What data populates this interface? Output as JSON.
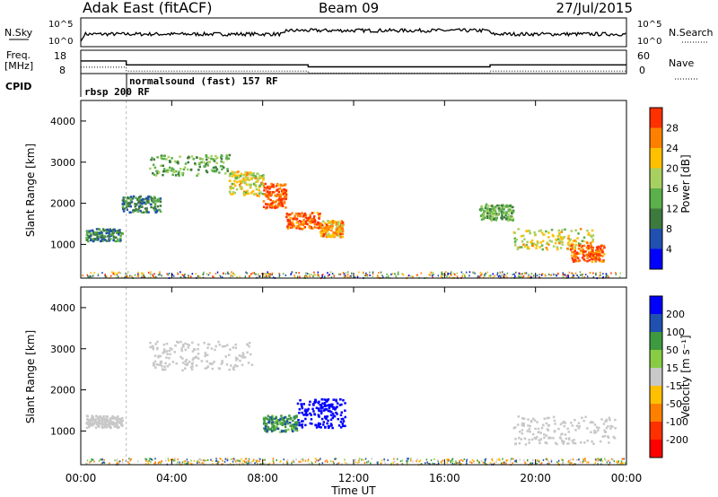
{
  "header": {
    "radar": "Adak East (fitACF)",
    "beam": "Beam 09",
    "date": "27/Jul/2015"
  },
  "param_panel": {
    "nsky_label": "N.Sky",
    "nsearch_label": "N.Search",
    "freq_label": "Freq.",
    "freq_unit": "[MHz]",
    "nave_label": "Nave",
    "cpid_label": "CPID",
    "left_ticks_top": [
      "10^5",
      "10^0"
    ],
    "right_ticks_top": [
      "10^5",
      "10^0"
    ],
    "left_ticks_freq": [
      "18",
      "8"
    ],
    "right_ticks_nave": [
      "60",
      "0"
    ],
    "cpid_entries": [
      {
        "name": "rbsp 200 RF",
        "start_hour": 0
      },
      {
        "name": "normalsound (fast) 157 RF",
        "start_hour": 2
      }
    ]
  },
  "x_axis": {
    "label": "Time UT",
    "ticks": [
      "00:00",
      "04:00",
      "08:00",
      "12:00",
      "16:00",
      "20:00",
      "00:00"
    ]
  },
  "y_axis": {
    "label": "Slant Range [km]",
    "ticks": [
      "1000",
      "2000",
      "3000",
      "4000"
    ]
  },
  "power_colorbar": {
    "label": "Power [dB]",
    "ticks": [
      "4",
      "8",
      "12",
      "16",
      "20",
      "24",
      "28"
    ],
    "colors": [
      "#0000ff",
      "#2050b0",
      "#3e7a3e",
      "#5ab04a",
      "#a8d060",
      "#ffc000",
      "#ff8000",
      "#ff3000"
    ]
  },
  "velocity_colorbar": {
    "label": "Velocity [m s⁻¹]",
    "ticks": [
      "200",
      "100",
      "50",
      "15",
      "-15",
      "-50",
      "-100",
      "-200"
    ],
    "colors": [
      "#0000ff",
      "#2050b0",
      "#3e9a3e",
      "#88cc44",
      "#c8c8c8",
      "#ffc000",
      "#ff8000",
      "#ff3000",
      "#ff0000"
    ]
  },
  "chart_data": {
    "type": "heatmap",
    "x_range_hours": [
      0,
      24
    ],
    "y_range_km": [
      180,
      4500
    ],
    "frequency_mhz": [
      {
        "start": 0,
        "end": 2,
        "value": 13.5
      },
      {
        "start": 2,
        "end": 10,
        "value": 11.5
      },
      {
        "start": 10,
        "end": 18,
        "value": 10.5
      },
      {
        "start": 18,
        "end": 24,
        "value": 11.5
      }
    ],
    "power_regions": [
      {
        "t": [
          0.2,
          1.8
        ],
        "r": [
          1100,
          1400
        ],
        "db": 10
      },
      {
        "t": [
          1.8,
          3.5
        ],
        "r": [
          1800,
          2200
        ],
        "db": 10
      },
      {
        "t": [
          3.0,
          6.5
        ],
        "r": [
          2700,
          3200
        ],
        "db": 14
      },
      {
        "t": [
          6.5,
          8.0
        ],
        "r": [
          2200,
          2800
        ],
        "db": 20
      },
      {
        "t": [
          8.0,
          9.0
        ],
        "r": [
          1900,
          2500
        ],
        "db": 28
      },
      {
        "t": [
          9.0,
          10.5
        ],
        "r": [
          1400,
          1800
        ],
        "db": 28
      },
      {
        "t": [
          10.5,
          11.5
        ],
        "r": [
          1200,
          1600
        ],
        "db": 24
      },
      {
        "t": [
          17.5,
          19.0
        ],
        "r": [
          1600,
          2000
        ],
        "db": 14
      },
      {
        "t": [
          19.0,
          22.5
        ],
        "r": [
          900,
          1400
        ],
        "db": 20
      },
      {
        "t": [
          21.5,
          23.0
        ],
        "r": [
          600,
          1000
        ],
        "db": 28
      }
    ],
    "velocity_regions": [
      {
        "t": [
          0.2,
          1.8
        ],
        "r": [
          1100,
          1400
        ],
        "v": 0
      },
      {
        "t": [
          3.0,
          7.5
        ],
        "r": [
          2500,
          3200
        ],
        "v": 0
      },
      {
        "t": [
          9.5,
          11.6
        ],
        "r": [
          1100,
          1800
        ],
        "v": 200
      },
      {
        "t": [
          8.0,
          9.5
        ],
        "r": [
          1000,
          1400
        ],
        "v": 60
      },
      {
        "t": [
          19.0,
          23.5
        ],
        "r": [
          700,
          1400
        ],
        "v": 0
      }
    ]
  }
}
